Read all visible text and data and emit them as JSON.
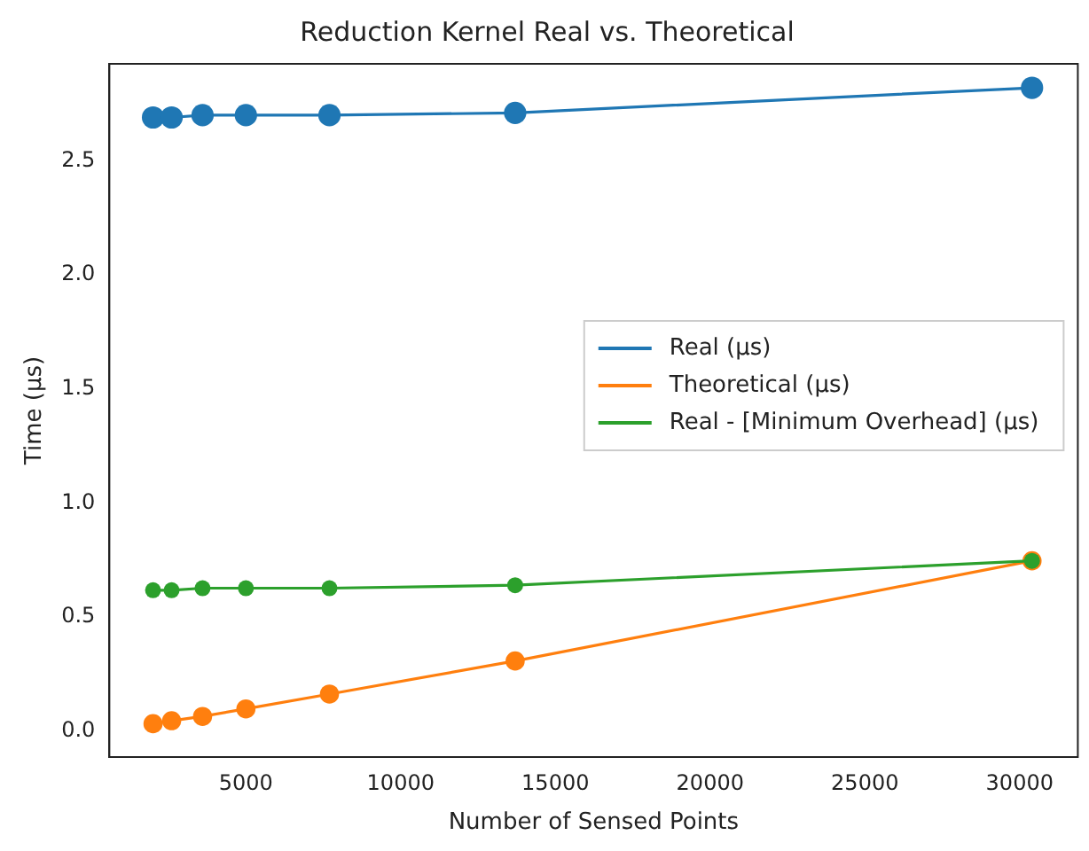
{
  "chart_data": {
    "type": "line",
    "title": "Reduction Kernel Real vs. Theoretical",
    "xlabel": "Number of Sensed Points",
    "ylabel": "Time (μs)",
    "x": [
      2000,
      2600,
      3600,
      5000,
      7700,
      13700,
      30400
    ],
    "series": [
      {
        "name": "Real (μs)",
        "color": "#1f77b4",
        "values": [
          2.69,
          2.69,
          2.7,
          2.7,
          2.7,
          2.71,
          2.82
        ]
      },
      {
        "name": "Theoretical (μs)",
        "color": "#ff7f0e",
        "values": [
          0.033,
          0.046,
          0.065,
          0.098,
          0.163,
          0.308,
          0.747
        ]
      },
      {
        "name": "Real - [Minimum Overhead] (μs)",
        "color": "#2ca02c",
        "values": [
          0.618,
          0.618,
          0.627,
          0.627,
          0.627,
          0.64,
          0.747
        ]
      }
    ],
    "xlim": [
      590,
      31880
    ],
    "xticks": [
      5000,
      10000,
      15000,
      20000,
      25000,
      30000
    ],
    "ylim": [
      -0.113,
      2.925
    ],
    "yticks": [
      {
        "value": 0,
        "label": "0.0"
      },
      0.5,
      {
        "value": 1,
        "label": "1.0"
      },
      1.5,
      {
        "value": 2,
        "label": "2.0"
      },
      2.5
    ],
    "grid": false,
    "legend": "right",
    "marker": "circle",
    "line_style": "solid"
  }
}
